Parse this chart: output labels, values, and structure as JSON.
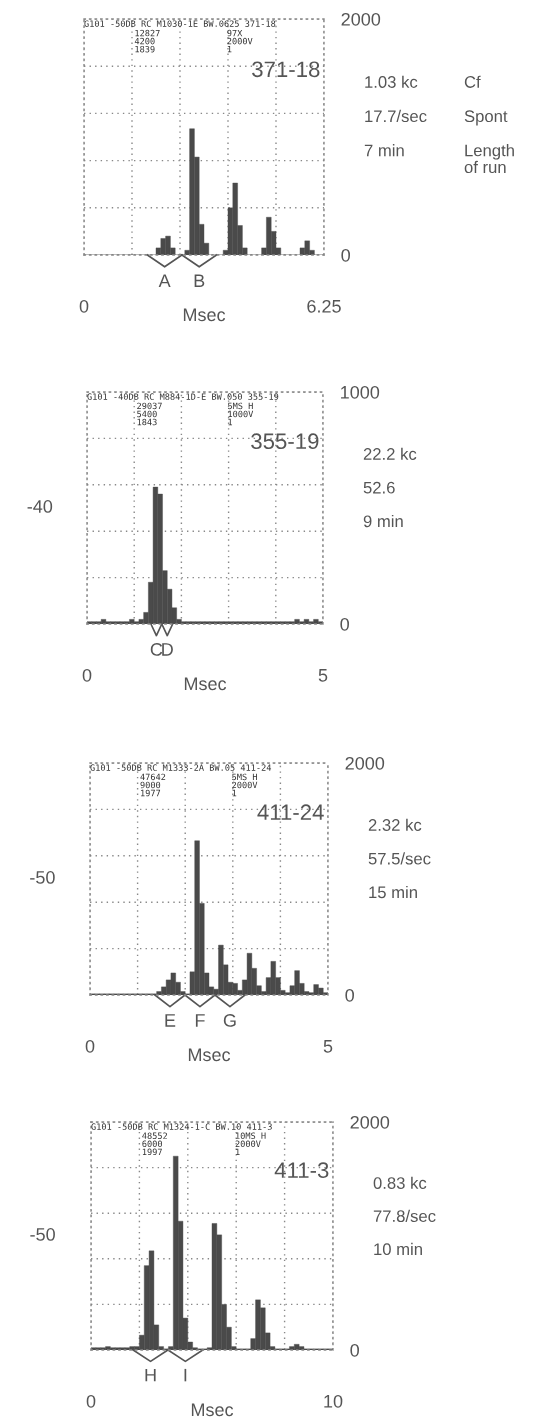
{
  "chart_data": [
    {
      "type": "histogram",
      "title": "371-18",
      "subtitle": "G101 -50DB RC M1030-1E BW.0625 371-18",
      "xlabel": "Msec",
      "color": "#4a4a4a",
      "bins": [
        0,
        0.125,
        0.25,
        0.375,
        0.5,
        0.625,
        0.75,
        0.875,
        1,
        1.125,
        1.25,
        1.375,
        1.5,
        1.625,
        1.75,
        1.875,
        2,
        2.125,
        2.25,
        2.375,
        2.5,
        2.625,
        2.75,
        2.875,
        3,
        3.125,
        3.25,
        3.375,
        3.5,
        3.625,
        3.75,
        3.875,
        4,
        4.125,
        4.25,
        4.375,
        4.5,
        4.625,
        4.75,
        4.875,
        5,
        5.125,
        5.25,
        5.375,
        5.5,
        5.625,
        5.75,
        5.875,
        6,
        6.125,
        6.25
      ],
      "values": [
        0,
        0,
        0,
        0,
        0,
        0,
        0,
        0,
        0,
        0,
        0,
        0,
        0,
        0,
        0,
        60,
        140,
        160,
        60,
        0,
        0,
        40,
        1070,
        830,
        260,
        100,
        0,
        0,
        0,
        40,
        400,
        610,
        250,
        60,
        0,
        0,
        0,
        60,
        320,
        200,
        60,
        0,
        0,
        0,
        0,
        60,
        120,
        40,
        0,
        0
      ],
      "xlim": [
        0,
        6.25
      ],
      "xticks": [
        0,
        {
          "value": 1.25,
          "label": null
        },
        {
          "value": 2.5,
          "label": null
        },
        {
          "value": 3.75,
          "label": null
        },
        {
          "value": 5,
          "label": null
        },
        6.25
      ],
      "ylim": [
        0,
        2000
      ],
      "yticks": [
        0,
        {
          "value": 400,
          "label": null
        },
        {
          "value": 800,
          "label": null
        },
        {
          "value": 1200,
          "label": null
        },
        {
          "value": 1600,
          "label": null
        },
        2000
      ],
      "grid": true,
      "annotations": [
        "12827\n4200\n1839",
        "97X\n2000V\n1",
        "1.03 kc",
        "17.7/sec",
        "7 min",
        "Cf",
        "Spont",
        "Length\nof run",
        {
          "text": "A",
          "x": 2.1,
          "y": 0
        },
        {
          "text": "B",
          "x": 3.0,
          "y": 0
        }
      ]
    },
    {
      "type": "histogram",
      "title": "355-19",
      "subtitle": "G101 -40DB RC M884-1D-E BW.050 355-19",
      "xlabel": "Msec",
      "ylabel": "-40",
      "color": "#4a4a4a",
      "bins": [
        0,
        0.1,
        0.2,
        0.3,
        0.4,
        0.5,
        0.6,
        0.7,
        0.8,
        0.9,
        1,
        1.1,
        1.2,
        1.3,
        1.4,
        1.5,
        1.6,
        1.7,
        1.8,
        1.9,
        2,
        2.1,
        2.2,
        2.3,
        2.4,
        2.5,
        2.6,
        2.7,
        2.8,
        2.9,
        3,
        3.1,
        3.2,
        3.3,
        3.4,
        3.5,
        3.6,
        3.7,
        3.8,
        3.9,
        4,
        4.1,
        4.2,
        4.3,
        4.4,
        4.5,
        4.6,
        4.7,
        4.8,
        4.9,
        5
      ],
      "values": [
        10,
        10,
        10,
        20,
        10,
        10,
        10,
        10,
        10,
        20,
        10,
        20,
        50,
        180,
        590,
        560,
        230,
        150,
        70,
        20,
        10,
        10,
        10,
        10,
        10,
        10,
        10,
        10,
        10,
        10,
        10,
        10,
        10,
        10,
        10,
        10,
        10,
        10,
        10,
        10,
        10,
        10,
        10,
        10,
        20,
        10,
        20,
        10,
        20,
        10
      ],
      "xlim": [
        0,
        5
      ],
      "xticks": [
        0,
        {
          "value": 1,
          "label": null
        },
        {
          "value": 2,
          "label": null
        },
        {
          "value": 3,
          "label": null
        },
        {
          "value": 4,
          "label": null
        },
        5
      ],
      "ylim": [
        0,
        1000
      ],
      "yticks": [
        0,
        {
          "value": 200,
          "label": null
        },
        {
          "value": 400,
          "label": null
        },
        {
          "value": 600,
          "label": null
        },
        {
          "value": 800,
          "label": null
        },
        1000
      ],
      "grid": true,
      "annotations": [
        "29037\n5400\n1843",
        "5MS H\n1000V\n1",
        "22.2 kc",
        "52.6",
        "9 min",
        {
          "text": "C",
          "x": 1.47,
          "y": 0
        },
        {
          "text": "D",
          "x": 1.7,
          "y": 0
        }
      ]
    },
    {
      "type": "histogram",
      "title": "411-24",
      "subtitle": "G101 -50DB RC M1333-2A BW.05 411-24",
      "xlabel": "Msec",
      "ylabel": "-50",
      "color": "#4a4a4a",
      "bins": [
        0,
        0.1,
        0.2,
        0.3,
        0.4,
        0.5,
        0.6,
        0.7,
        0.8,
        0.9,
        1,
        1.1,
        1.2,
        1.3,
        1.4,
        1.5,
        1.6,
        1.7,
        1.8,
        1.9,
        2,
        2.1,
        2.2,
        2.3,
        2.4,
        2.5,
        2.6,
        2.7,
        2.8,
        2.9,
        3,
        3.1,
        3.2,
        3.3,
        3.4,
        3.5,
        3.6,
        3.7,
        3.8,
        3.9,
        4,
        4.1,
        4.2,
        4.3,
        4.4,
        4.5,
        4.6,
        4.7,
        4.8,
        4.9,
        5
      ],
      "values": [
        10,
        10,
        10,
        10,
        10,
        10,
        10,
        10,
        10,
        10,
        10,
        10,
        10,
        10,
        30,
        70,
        130,
        190,
        110,
        30,
        10,
        200,
        1330,
        790,
        190,
        70,
        50,
        430,
        260,
        110,
        100,
        40,
        130,
        360,
        230,
        80,
        30,
        150,
        290,
        150,
        40,
        20,
        80,
        210,
        100,
        30,
        20,
        90,
        60,
        20
      ],
      "xlim": [
        0,
        5
      ],
      "xticks": [
        0,
        {
          "value": 1,
          "label": null
        },
        {
          "value": 2,
          "label": null
        },
        {
          "value": 3,
          "label": null
        },
        {
          "value": 4,
          "label": null
        },
        5
      ],
      "ylim": [
        0,
        2000
      ],
      "yticks": [
        0,
        {
          "value": 400,
          "label": null
        },
        {
          "value": 800,
          "label": null
        },
        {
          "value": 1200,
          "label": null
        },
        {
          "value": 1600,
          "label": null
        },
        2000
      ],
      "grid": true,
      "annotations": [
        "47642\n9000\n1977",
        "5MS H\n2000V\n1",
        "2.32 kc",
        "57.5/sec",
        "15 min",
        {
          "text": "E",
          "x": 1.68,
          "y": 0
        },
        {
          "text": "F",
          "x": 2.31,
          "y": 0
        },
        {
          "text": "G",
          "x": 2.94,
          "y": 0
        }
      ]
    },
    {
      "type": "histogram",
      "title": "411-3",
      "subtitle": "G101 -50DB RC M1324-1-C BW.10 411-3",
      "xlabel": "Msec",
      "ylabel": "-50",
      "color": "#4a4a4a",
      "bins": [
        0,
        0.2,
        0.4,
        0.6,
        0.8,
        1,
        1.2,
        1.4,
        1.6,
        1.8,
        2,
        2.2,
        2.4,
        2.6,
        2.8,
        3,
        3.2,
        3.4,
        3.6,
        3.8,
        4,
        4.2,
        4.4,
        4.6,
        4.8,
        5,
        5.2,
        5.4,
        5.6,
        5.8,
        6,
        6.2,
        6.4,
        6.6,
        6.8,
        7,
        7.2,
        7.4,
        7.6,
        7.8,
        8,
        8.2,
        8.4,
        8.6,
        8.8,
        9,
        9.2,
        9.4,
        9.6,
        9.8,
        10
      ],
      "values": [
        20,
        20,
        20,
        30,
        20,
        20,
        20,
        20,
        30,
        30,
        130,
        740,
        870,
        220,
        30,
        10,
        30,
        1700,
        1130,
        280,
        70,
        20,
        10,
        10,
        20,
        1110,
        1010,
        400,
        200,
        30,
        10,
        10,
        10,
        100,
        440,
        370,
        150,
        30,
        10,
        10,
        10,
        30,
        50,
        30,
        10,
        10,
        10,
        10,
        10,
        10
      ],
      "xlim": [
        0,
        10
      ],
      "xticks": [
        0,
        {
          "value": 2,
          "label": null
        },
        {
          "value": 4,
          "label": null
        },
        {
          "value": 6,
          "label": null
        },
        {
          "value": 8,
          "label": null
        },
        10
      ],
      "ylim": [
        0,
        2000
      ],
      "yticks": [
        0,
        {
          "value": 400,
          "label": null
        },
        {
          "value": 800,
          "label": null
        },
        {
          "value": 1200,
          "label": null
        },
        {
          "value": 1600,
          "label": null
        },
        2000
      ],
      "grid": true,
      "annotations": [
        "48552\n6000\n1997",
        "10MS H\n2000V\n1",
        "0.83 kc",
        "77.8/sec",
        "10 min",
        {
          "text": "H",
          "x": 2.46,
          "y": 0
        },
        {
          "text": "I",
          "x": 3.9,
          "y": 0
        }
      ]
    }
  ]
}
